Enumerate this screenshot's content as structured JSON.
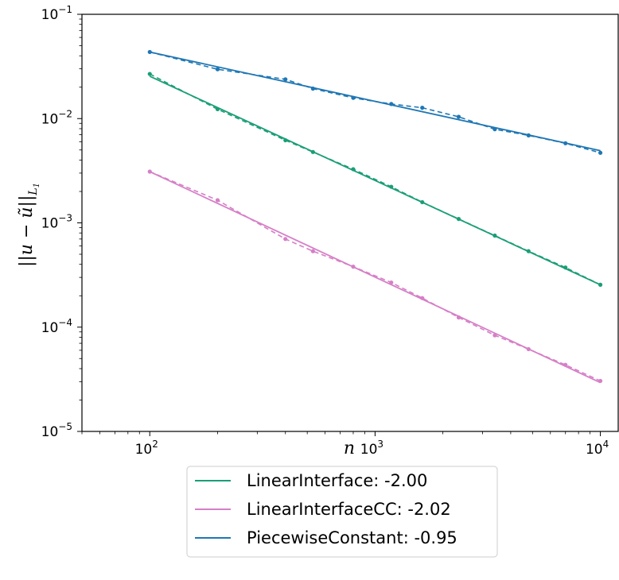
{
  "chart_data": {
    "type": "line",
    "xscale": "log",
    "yscale": "log",
    "xlim": [
      50,
      12000
    ],
    "ylim": [
      1e-05,
      0.1
    ],
    "xlabel": "n",
    "ylabel": "||u − ũ||L₁",
    "xticks": [
      {
        "value": 100,
        "base": "10",
        "exp": "2"
      },
      {
        "value": 1000,
        "base": "10",
        "exp": "3"
      },
      {
        "value": 10000,
        "base": "10",
        "exp": "4"
      }
    ],
    "yticks": [
      {
        "value": 0.1,
        "base": "10",
        "exp": "−1"
      },
      {
        "value": 0.01,
        "base": "10",
        "exp": "−2"
      },
      {
        "value": 0.001,
        "base": "10",
        "exp": "−3"
      },
      {
        "value": 0.0001,
        "base": "10",
        "exp": "−4"
      },
      {
        "value": 1e-05,
        "base": "10",
        "exp": "−5"
      }
    ],
    "grid": false,
    "legend_position": "below",
    "series": [
      {
        "name": "LinearInterface: -2.00",
        "color": "#1b9e77",
        "x": [
          100,
          200,
          400,
          530,
          800,
          1180,
          1620,
          2350,
          3400,
          4800,
          7000,
          10000
        ],
        "y": [
          0.0268,
          0.0123,
          0.0062,
          0.00478,
          0.00327,
          0.00222,
          0.00158,
          0.00109,
          0.000755,
          0.000535,
          0.000373,
          0.000255
        ],
        "fit": {
          "x": [
            100,
            10000
          ],
          "y": [
            0.0255,
            0.000255
          ]
        }
      },
      {
        "name": "LinearInterfaceCC: -2.02",
        "color": "#d67fc7",
        "x": [
          100,
          200,
          400,
          530,
          800,
          1180,
          1620,
          2350,
          3400,
          4800,
          7000,
          10000
        ],
        "y": [
          0.0031,
          0.00165,
          0.0007,
          0.000535,
          0.00038,
          0.000268,
          0.00019,
          0.000124,
          8.35e-05,
          6.15e-05,
          4.35e-05,
          3.05e-05
        ],
        "fit": {
          "x": [
            100,
            10000
          ],
          "y": [
            0.0031,
            2.94e-05
          ]
        }
      },
      {
        "name": "PiecewiseConstant: -0.95",
        "color": "#1f77b4",
        "x": [
          100,
          200,
          400,
          530,
          800,
          1180,
          1620,
          2350,
          3400,
          4800,
          7000,
          10000
        ],
        "y": [
          0.0435,
          0.0297,
          0.0238,
          0.0194,
          0.0158,
          0.0138,
          0.0127,
          0.0104,
          0.0079,
          0.0069,
          0.0058,
          0.0047
        ],
        "fit": {
          "x": [
            100,
            10000
          ],
          "y": [
            0.0435,
            0.00492
          ]
        }
      }
    ]
  }
}
